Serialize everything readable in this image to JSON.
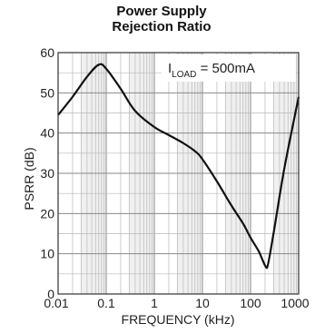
{
  "chart_data": {
    "type": "line",
    "title_line1": "Power Supply",
    "title_line2": "Rejection Ratio",
    "xlabel": "FREQUENCY (kHz)",
    "ylabel": "PSRR (dB)",
    "x_scale": "log",
    "xlim": [
      0.01,
      1000
    ],
    "ylim": [
      0,
      60
    ],
    "grid": true,
    "x_ticks": [
      "0.01",
      "0.1",
      "1",
      "10",
      "100",
      "1000"
    ],
    "y_ticks": [
      "0",
      "10",
      "20",
      "30",
      "40",
      "50",
      "60"
    ],
    "annotation": {
      "prefix": "I",
      "subscript": "LOAD",
      "suffix": " = 500mA"
    },
    "series": [
      {
        "x": [
          0.01,
          0.02,
          0.04,
          0.07,
          0.1,
          0.2,
          0.4,
          1,
          2,
          4,
          7,
          10,
          20,
          40,
          70,
          100,
          150,
          220,
          300,
          500,
          1000
        ],
        "y": [
          44.5,
          49,
          54,
          57,
          56,
          51,
          45.5,
          41.5,
          39.5,
          37.5,
          35.5,
          33.5,
          28,
          22,
          17.5,
          14,
          10.5,
          6.5,
          15,
          31,
          49
        ]
      }
    ],
    "colors": {
      "line": "#111111",
      "grid": "#b8b8b8",
      "axis": "#333333",
      "minor_band": "#f0f0f0"
    }
  }
}
